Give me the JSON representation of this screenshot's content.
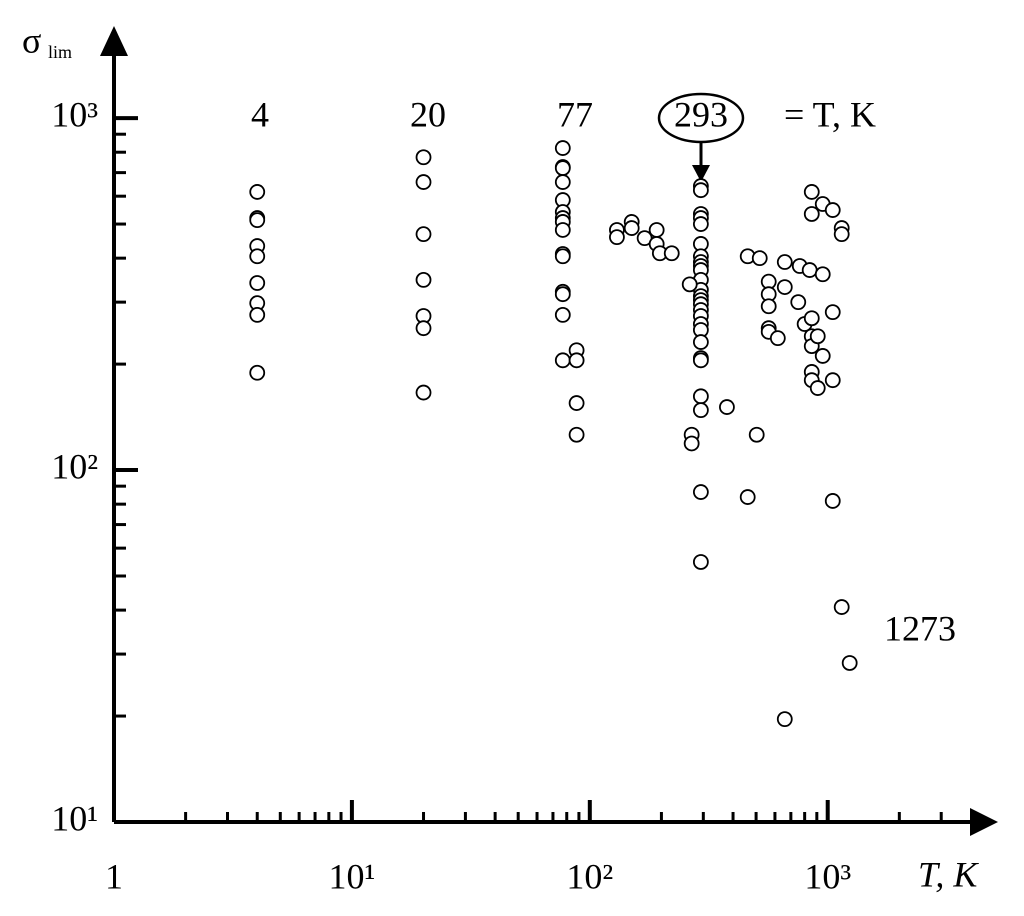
{
  "chart_data": {
    "type": "scatter",
    "ylabel": "σ",
    "ylabel_sub": "lim",
    "xlabel": "T, K",
    "xlog": true,
    "ylog": true,
    "xlim": [
      1,
      5000
    ],
    "ylim": [
      10,
      1700
    ],
    "xticks": [
      1,
      {
        "value": 10,
        "label": "10¹"
      },
      {
        "value": 100,
        "label": "10²"
      },
      {
        "value": 1000,
        "label": "10³"
      }
    ],
    "yticks": [
      {
        "value": 10,
        "label": "10¹"
      },
      {
        "value": 100,
        "label": "10²"
      },
      {
        "value": 1000,
        "label": "10³"
      }
    ],
    "xminorticks": [
      2,
      3,
      4,
      5,
      6,
      7,
      8,
      9,
      20,
      30,
      40,
      50,
      60,
      70,
      80,
      90,
      200,
      300,
      400,
      500,
      600,
      700,
      800,
      900,
      2000,
      3000
    ],
    "yminorticks": [
      20,
      30,
      40,
      50,
      60,
      70,
      80,
      90,
      200,
      300,
      400,
      500,
      600,
      700,
      800,
      900
    ],
    "annotations": [
      "4",
      "20",
      "77",
      "293",
      "= T, K",
      "1273"
    ],
    "color": "#000000",
    "x": [
      4,
      4,
      4,
      4,
      4,
      4,
      4,
      4,
      4,
      20,
      20,
      20,
      20,
      20,
      20,
      20,
      77,
      77,
      77,
      77,
      77,
      77,
      77,
      77,
      77,
      77,
      77,
      77,
      77,
      77,
      77,
      88,
      88,
      88,
      88,
      130,
      130,
      150,
      150,
      170,
      191,
      191,
      197,
      221,
      293,
      293,
      293,
      293,
      293,
      293,
      293,
      293,
      293,
      293,
      293,
      293,
      293,
      293,
      293,
      293,
      293,
      293,
      293,
      293,
      293,
      293,
      293,
      293,
      293,
      293,
      263,
      268,
      268,
      377,
      461,
      518,
      461,
      503,
      565,
      565,
      565,
      565,
      565,
      617,
      660,
      660,
      660,
      763,
      752,
      840,
      857,
      857,
      953,
      953,
      953,
      800,
      857,
      857,
      857,
      857,
      857,
      908,
      908,
      1050,
      1050,
      1050,
      1050,
      1145,
      1145,
      1145,
      1237
    ],
    "values": [
      617,
      520,
      513,
      433,
      405,
      340,
      298,
      276,
      189,
      774,
      658,
      468,
      347,
      274,
      253,
      166,
      822,
      726,
      721,
      658,
      585,
      541,
      520,
      507,
      481,
      411,
      405,
      321,
      316,
      276,
      205,
      219,
      205,
      155,
      126,
      481,
      459,
      507,
      487,
      456,
      481,
      439,
      413,
      413,
      641,
      624,
      534,
      520,
      500,
      439,
      405,
      390,
      380,
      370,
      347,
      325,
      312,
      304,
      296,
      285,
      274,
      260,
      250,
      231,
      208,
      205,
      162,
      148,
      86.6,
      54.8,
      337,
      126,
      119,
      151,
      405,
      400,
      83.8,
      126,
      343,
      316,
      292,
      253,
      247,
      237,
      390,
      19.6,
      331,
      380,
      300,
      370,
      617,
      534,
      360,
      570,
      211,
      260,
      270,
      240,
      225,
      190,
      180,
      240,
      171,
      548,
      281,
      180,
      81.7,
      487,
      468,
      40.8,
      28.3
    ]
  }
}
